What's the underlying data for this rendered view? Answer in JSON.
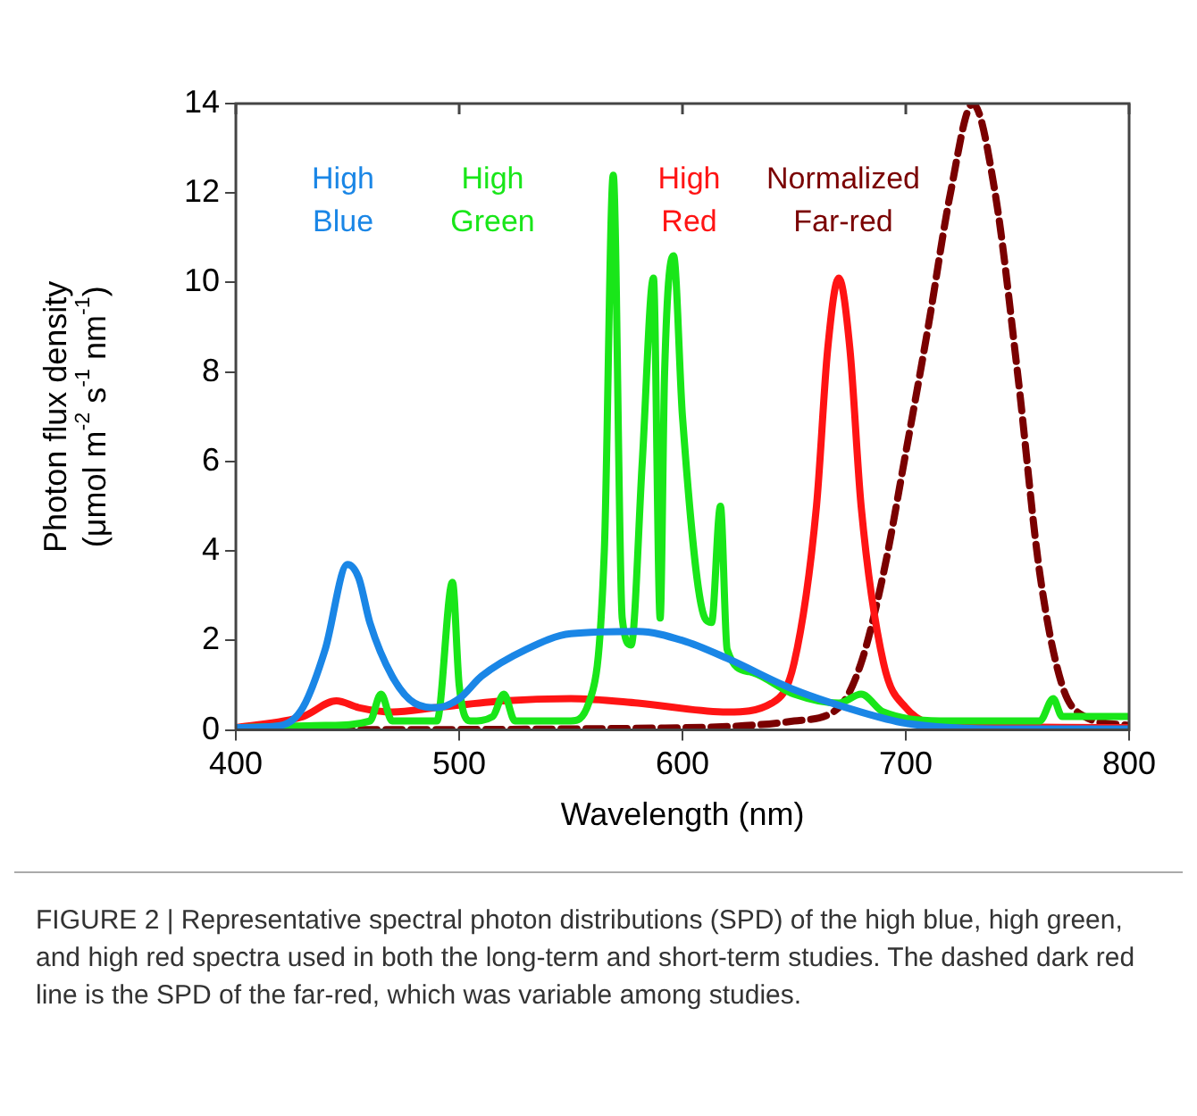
{
  "chart_data": {
    "type": "line",
    "xlabel": "Wavelength (nm)",
    "ylabel": "Photon flux density\n(μmol m$^{-2}$ s$^{-1}$ nm$^{-1}$)",
    "xlim": [
      400,
      800
    ],
    "xticks": [
      400,
      500,
      600,
      700,
      800
    ],
    "ylim": [
      0,
      14
    ],
    "yticks": [
      0,
      2,
      4,
      6,
      8,
      10,
      12,
      14
    ],
    "grid": false,
    "legend": false,
    "marker": "none",
    "series": [
      {
        "name": "High\nBlue",
        "color": "#1a86e6",
        "x": [
          400,
          420,
          430,
          440,
          450,
          455,
          460,
          470,
          480,
          490,
          500,
          510,
          530,
          550,
          580,
          600,
          620,
          650,
          680,
          700,
          720,
          750,
          800
        ],
        "values": [
          0.05,
          0.1,
          0.5,
          1.8,
          3.7,
          3.4,
          2.4,
          1.2,
          0.6,
          0.5,
          0.7,
          1.2,
          1.8,
          2.15,
          2.2,
          2.0,
          1.6,
          0.9,
          0.4,
          0.15,
          0.05,
          0.02,
          0.02
        ]
      },
      {
        "name": "High\nGreen",
        "color": "#19e619",
        "x": [
          400,
          440,
          460,
          465,
          470,
          490,
          497,
          500,
          505,
          515,
          520,
          525,
          550,
          558,
          565,
          569,
          573,
          577,
          582,
          587,
          590,
          592,
          596,
          600,
          610,
          613,
          617,
          620,
          630,
          650,
          670,
          680,
          690,
          720,
          760,
          766,
          770,
          800
        ],
        "values": [
          0.05,
          0.1,
          0.2,
          0.8,
          0.2,
          0.2,
          3.3,
          1.0,
          0.2,
          0.3,
          0.8,
          0.2,
          0.2,
          0.6,
          4,
          12.4,
          2.5,
          1.9,
          6,
          10.1,
          2.5,
          8,
          10.6,
          7,
          2.5,
          2.4,
          5.0,
          1.8,
          1.3,
          0.8,
          0.6,
          0.8,
          0.4,
          0.2,
          0.2,
          0.7,
          0.3,
          0.3
        ]
      },
      {
        "name": "High\nRed",
        "color": "#ff1414",
        "x": [
          400,
          430,
          445,
          455,
          470,
          490,
          520,
          550,
          580,
          620,
          640,
          650,
          660,
          665,
          670,
          675,
          680,
          690,
          700,
          720,
          800
        ],
        "values": [
          0.05,
          0.3,
          0.65,
          0.5,
          0.4,
          0.5,
          0.65,
          0.7,
          0.6,
          0.4,
          0.6,
          1.5,
          5,
          8.5,
          10.1,
          8.5,
          5,
          1.5,
          0.5,
          0.1,
          0.05
        ]
      },
      {
        "name": "Normalized\nFar-red",
        "color": "#7a0000",
        "line_style": "dashed",
        "x": [
          400,
          600,
          650,
          670,
          680,
          690,
          700,
          710,
          720,
          730,
          740,
          750,
          760,
          770,
          780,
          800
        ],
        "values": [
          0,
          0.05,
          0.2,
          0.5,
          1.5,
          3.5,
          6.2,
          9,
          12,
          14,
          12,
          8,
          3.5,
          1,
          0.3,
          0.1
        ]
      }
    ],
    "annotations": [
      "FIGURE 2 | Representative spectral photon distributions (SPD) of the high blue, high green, and high red spectra used in both the long-term and short-term studies. The dashed dark red line is the SPD of the far-red, which was variable among studies."
    ]
  }
}
